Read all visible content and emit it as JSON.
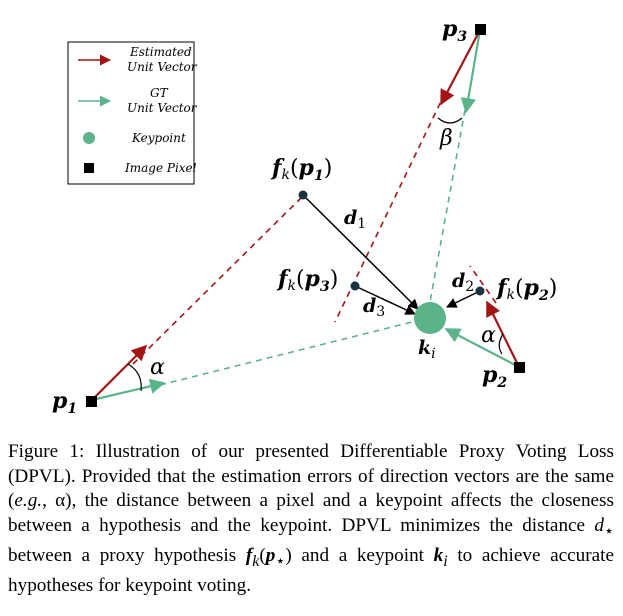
{
  "legend": {
    "estimated_line1": "Estimated",
    "estimated_line2": "Unit Vector",
    "gt_line1": "GT",
    "gt_line2": "Unit Vector",
    "keypoint": "Keypoint",
    "image_pixel": "Image Pixel"
  },
  "labels": {
    "p1": "p",
    "p1_sub": "1",
    "p2": "p",
    "p2_sub": "2",
    "p3": "p",
    "p3_sub": "3",
    "fk_p1": "f",
    "fk_p2": "f",
    "fk_p3": "f",
    "k": "k",
    "d1": "d",
    "d1_sub": "1",
    "d2": "d",
    "d2_sub": "2",
    "d3": "d",
    "d3_sub": "3",
    "ki": "k",
    "ki_sub": "i",
    "alpha": "α",
    "beta": "β"
  },
  "colors": {
    "estimated": "#a31515",
    "gt": "#5bb38a",
    "keypoint": "#5bb38a",
    "pixel": "#000000"
  },
  "caption": {
    "label": "Figure 1:",
    "part1": "Illustration of our presented Differentiable Proxy Voting Loss (DPVL). Provided that the estimation errors of direction vectors are the same (",
    "eg": "e.g.",
    "part2": ", α), the distance between a pixel and a keypoint affects the closeness between a hypothesis and the keypoint. DPVL minimizes the distance ",
    "dstar": "d",
    "part3": " between a proxy hypothesis ",
    "fk": "f",
    "part4": " and a keypoint ",
    "ki": "k",
    "part5": " to achieve accurate hypotheses for keypoint voting."
  }
}
